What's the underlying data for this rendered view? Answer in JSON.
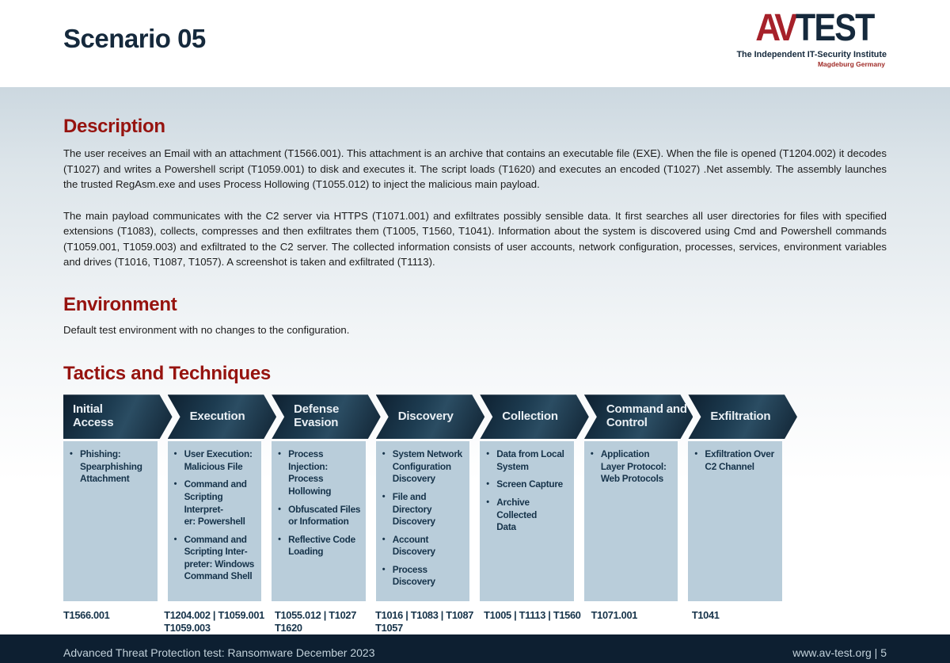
{
  "page": {
    "title": "Scenario 05"
  },
  "logo": {
    "brand_av": "AV",
    "brand_test": "TEST",
    "tagline": "The Independent IT-Security Institute",
    "location": "Magdeburg Germany"
  },
  "description": {
    "heading": "Description",
    "paragraphs": [
      "The user receives an Email with an attachment (T1566.001). This attachment is an archive that contains an executable file (EXE). When the file is opened (T1204.002) it decodes (T1027) and writes a Powershell script (T1059.001) to disk and executes it. The script loads (T1620) and executes an encoded (T1027) .Net assembly. The assembly launches the trusted RegAsm.exe and uses Process Hollowing (T1055.012) to inject the malicious main payload.",
      "The main payload communicates with the C2 server via HTTPS (T1071.001) and exfiltrates possibly sensible data. It first searches all user directories for files with specified extensions (T1083), collects, compresses and then exfiltrates them (T1005, T1560, T1041). Information about the system is discovered using Cmd and Powershell commands (T1059.001, T1059.003) and exfiltrated to the C2 server. The collected information consists of user accounts, network configuration, processes, services, environment variables and drives (T1016, T1087, T1057). A screenshot is taken and exfiltrated (T1113)."
    ]
  },
  "environment": {
    "heading": "Environment",
    "text": "Default test environment with no changes to the configuration."
  },
  "tactics": {
    "heading": "Tactics and Techniques",
    "columns": [
      {
        "tactic": "Initial\nAccess",
        "techniques": [
          "Phishing:\nSpearphishing\nAttachment"
        ],
        "ids": "T1566.001"
      },
      {
        "tactic": "Execution",
        "techniques": [
          "User Execution:\nMalicious File",
          "Command and\nScripting Interpret-\ner: Powershell",
          "Command and\nScripting Inter-\npreter: Windows\nCommand Shell"
        ],
        "ids": "T1204.002 | T1059.001\nT1059.003"
      },
      {
        "tactic": "Defense\nEvasion",
        "techniques": [
          "Process Injection:\nProcess Hollowing",
          "Obfuscated Files\nor Information",
          "Reflective Code\nLoading"
        ],
        "ids": "T1055.012 | T1027\nT1620"
      },
      {
        "tactic": "Discovery",
        "techniques": [
          "System Network\nConfiguration\nDiscovery",
          "File and Directory\nDiscovery",
          "Account Discovery",
          "Process Discovery"
        ],
        "ids": "T1016 | T1083 | T1087\nT1057"
      },
      {
        "tactic": "Collection",
        "techniques": [
          "Data from Local\nSystem",
          "Screen Capture",
          "Archive Collected\nData"
        ],
        "ids": "T1005 | T1113 | T1560"
      },
      {
        "tactic": "Command and\nControl",
        "techniques": [
          "Application\nLayer Protocol:\nWeb Protocols"
        ],
        "ids": "T1071.001"
      },
      {
        "tactic": "Exfiltration",
        "techniques": [
          "Exfiltration Over\nC2 Channel"
        ],
        "ids": "T1041"
      }
    ]
  },
  "footer": {
    "left": "Advanced Threat Protection test: Ransomware December 2023",
    "right": "www.av-test.org | 5"
  },
  "colors": {
    "accent_red": "#96130f",
    "logo_red": "#a6212a",
    "navy": "#15293c",
    "box_blue": "#b9cdda",
    "footer_bg": "#0d1f31"
  }
}
